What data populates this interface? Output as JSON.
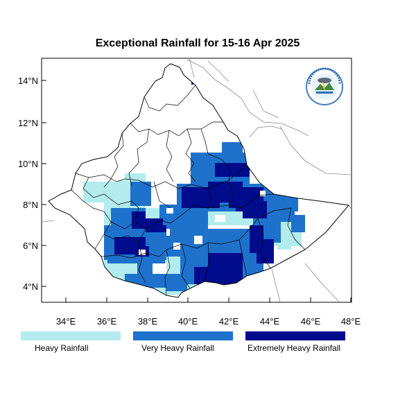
{
  "title": "Exceptional Rainfall for 15-16 Apr 2025",
  "axes": {
    "x_ticks": [
      "34°E",
      "36°E",
      "38°E",
      "40°E",
      "42°E",
      "44°E",
      "46°E",
      "48°E"
    ],
    "y_ticks": [
      "14°N",
      "12°N",
      "10°N",
      "8°N",
      "6°N",
      "4°N"
    ]
  },
  "legend": [
    {
      "label": "Heavy Rainfall",
      "color": "#b3ecef"
    },
    {
      "label": "Very Heavy Rainfall",
      "color": "#1e72cc"
    },
    {
      "label": "Extremely Heavy Rainfall",
      "color": "#000c8c"
    }
  ],
  "colors": {
    "heavy": "#b3ecef",
    "very_heavy": "#1e72cc",
    "extremely_heavy": "#000c8c",
    "borders": "#000000",
    "neighbor_borders": "#8a8a8a"
  },
  "logo": {
    "text": "የኢትዮጵያ ሚቲዎሮሎጂ ኢንስቲትዩት · Ethiopian Meteorology Institute",
    "year": "EMI"
  }
}
